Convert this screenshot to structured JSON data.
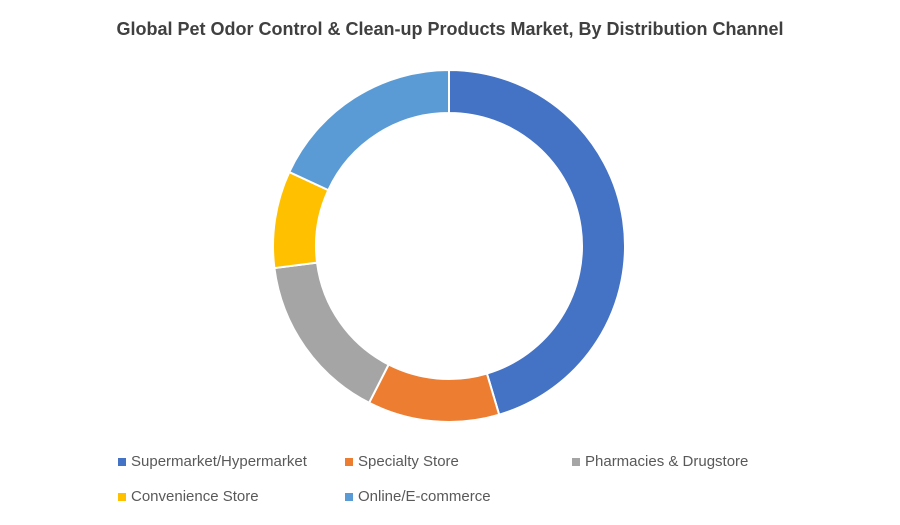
{
  "chart_data": {
    "type": "donut",
    "title": "Global Pet Odor Control & Clean-up Products Market, By Distribution Channel",
    "categories": [
      "Supermarket/Hypermarket",
      "Specialty Store",
      "Pharmacies & Drugstore",
      "Convenience Store",
      "Online/E-commerce"
    ],
    "values": [
      45.4,
      12.1,
      15.5,
      8.9,
      18.1
    ],
    "colors": [
      "#4472c4",
      "#ed7d31",
      "#a5a5a5",
      "#ffc000",
      "#5b9bd5"
    ],
    "legend": "bottom"
  }
}
